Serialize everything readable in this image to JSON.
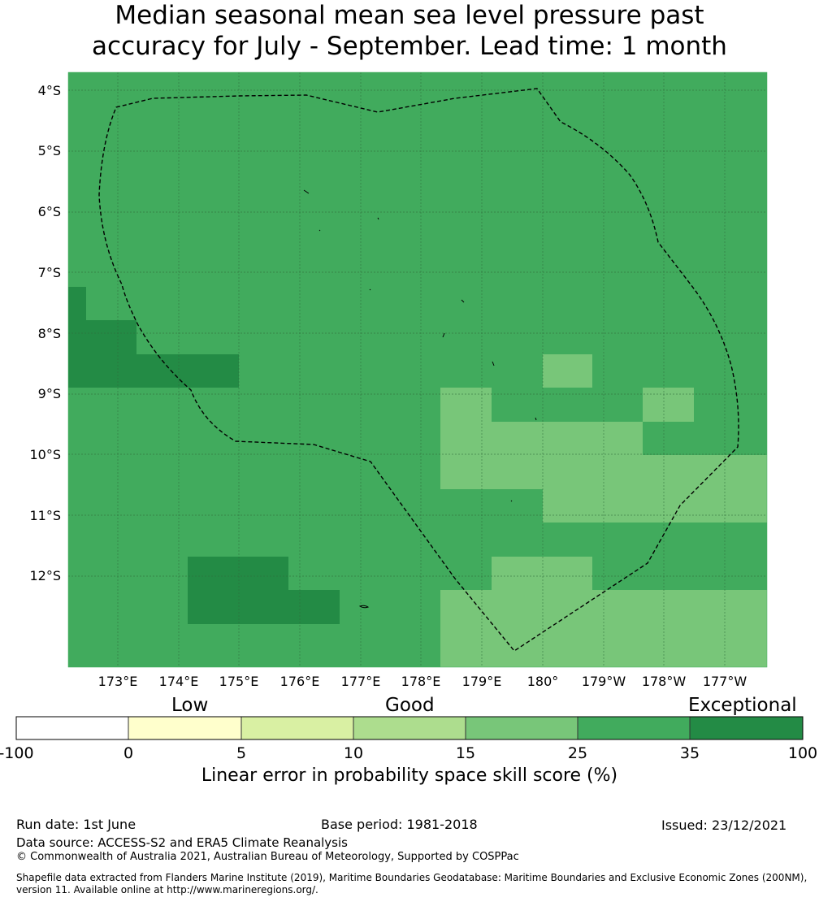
{
  "title": {
    "line1": "Median seasonal mean sea level pressure past",
    "line2": "accuracy for July - September. Lead time: 1 month"
  },
  "map": {
    "lat_labels": [
      "4°S",
      "5°S",
      "6°S",
      "7°S",
      "8°S",
      "9°S",
      "10°S",
      "11°S",
      "12°S"
    ],
    "lon_labels": [
      "173°E",
      "174°E",
      "175°E",
      "176°E",
      "177°E",
      "178°E",
      "179°E",
      "180°",
      "179°W",
      "178°W",
      "177°W"
    ],
    "colors": {
      "c25_35": "#41ab5d",
      "c35_100": "#238b45",
      "c15_25": "#78c679",
      "grid": "#2f6b3a",
      "boundary": "#000000"
    }
  },
  "colorbar": {
    "categories": [
      "Low",
      "Good",
      "Exceptional"
    ],
    "ticks": [
      "-100",
      "0",
      "5",
      "10",
      "15",
      "25",
      "35",
      "100"
    ],
    "colors": [
      "#ffffff",
      "#ffffcc",
      "#d9f0a3",
      "#addd8e",
      "#78c679",
      "#41ab5d",
      "#238b45"
    ],
    "label": "Linear error in probability space skill score (%)"
  },
  "footer": {
    "run_date": "Run date: 1st June",
    "base_period": "Base period: 1981-2018",
    "issued": "Issued: 23/12/2021",
    "data_source": "Data source: ACCESS-S2 and ERA5 Climate Reanalysis",
    "copyright": "© Commonwealth of Australia 2021, Australian Bureau of Meteorology, Supported by COSPPac",
    "shapefile": "Shapefile data extracted from Flanders Marine Institute (2019), Maritime Boundaries Geodatabase: Maritime Boundaries and Exclusive Economic Zones (200NM), version 11. Available online at http://www.marineregions.org/."
  }
}
